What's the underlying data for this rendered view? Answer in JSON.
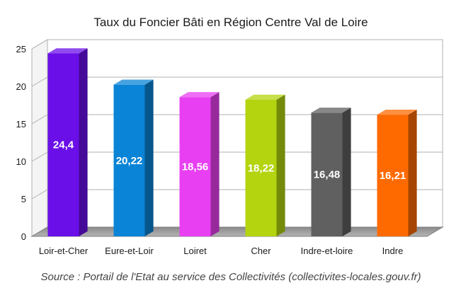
{
  "chart_data": {
    "type": "bar",
    "title": "Taux du Foncier Bâti en Région Centre Val de Loire",
    "categories": [
      "Loir-et-Cher",
      "Eure-et-Loir",
      "Loiret",
      "Cher",
      "Indre-et-loire",
      "Indre"
    ],
    "values": [
      24.4,
      20.22,
      18.56,
      18.22,
      16.48,
      16.21
    ],
    "value_labels": [
      "24,4",
      "20,22",
      "18,56",
      "18,22",
      "16,48",
      "16,21"
    ],
    "colors": [
      "#6a0fe8",
      "#0a84d6",
      "#e83ff2",
      "#b3d40f",
      "#606060",
      "#ff6a00"
    ],
    "ylim": [
      0,
      25
    ],
    "yticks": [
      "0",
      "5",
      "10",
      "15",
      "20",
      "25"
    ],
    "grid": true,
    "xlabel": "",
    "ylabel": "",
    "source": "Source : Portail de l'Etat au service des Collectivités (collectivites-locales.gouv.fr)"
  }
}
